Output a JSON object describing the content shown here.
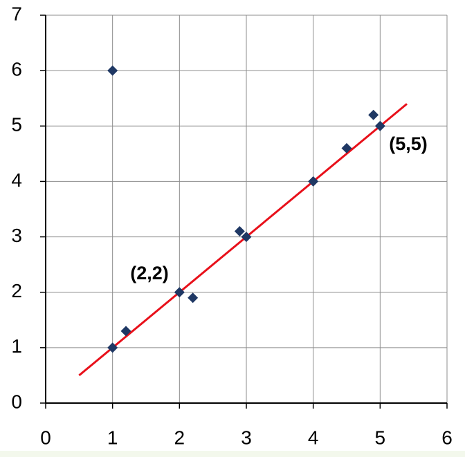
{
  "chart_data": {
    "type": "scatter",
    "series": [
      {
        "type": "scatter",
        "color": "#1f3864",
        "x": [
          1,
          1,
          1.2,
          2,
          2.2,
          2.9,
          3,
          4,
          4.5,
          4.9,
          5
        ],
        "values": [
          6,
          1,
          1.3,
          2,
          1.9,
          3.1,
          3,
          4,
          4.6,
          5.2,
          5
        ]
      },
      {
        "type": "line",
        "color": "#e8101a",
        "x": [
          0.5,
          5.4
        ],
        "values": [
          0.5,
          5.4
        ]
      }
    ],
    "annotations": [
      "(2,2)",
      "(5,5)"
    ],
    "xlim": [
      0,
      6
    ],
    "ylim": [
      0,
      7
    ],
    "xticks": [
      0,
      1,
      2,
      3,
      4,
      5,
      6
    ],
    "yticks": [
      0,
      1,
      2,
      3,
      4,
      5,
      6,
      7
    ],
    "grid": true
  }
}
